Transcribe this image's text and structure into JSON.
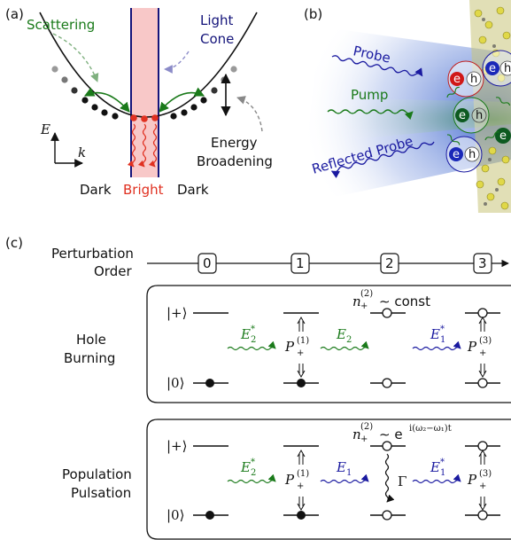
{
  "panel_a": {
    "tag": "(a)",
    "scattering": "Scattering",
    "light_cone_1": "Light",
    "light_cone_2": "Cone",
    "energy_broadening_1": "Energy",
    "energy_broadening_2": "Broadening",
    "axis_e": "E",
    "axis_k": "k",
    "dark_left": "Dark",
    "bright": "Bright",
    "dark_right": "Dark"
  },
  "panel_b": {
    "tag": "(b)",
    "probe": "Probe",
    "pump": "Pump",
    "reflected_probe": "Reflected Probe",
    "electron": "e",
    "hole": "h"
  },
  "panel_c": {
    "tag": "(c)",
    "perturbation_1": "Perturbation",
    "perturbation_2": "Order",
    "orders": [
      "0",
      "1",
      "2",
      "3"
    ],
    "hole_burning_1": "Hole",
    "hole_burning_2": "Burning",
    "population_1": "Population",
    "population_2": "Pulsation",
    "state_plus": "|+⟩",
    "state_zero": "|0⟩",
    "hb_n": "n",
    "hb_const": "∼ const",
    "pp_n": "n",
    "pp_exp": "∼ e",
    "pp_exp_sup": "i(ω₂−ω₁)t",
    "field_e2_star": "E",
    "field_e2": "E",
    "field_e1_star": "E",
    "field_e1": "E",
    "p_label": "P",
    "gamma": "Γ"
  },
  "colors": {
    "green": "#1a7a1a",
    "blue": "#1a1aa0",
    "red": "#e03020",
    "pink": "#f8c8c8",
    "navy": "#14147a"
  }
}
